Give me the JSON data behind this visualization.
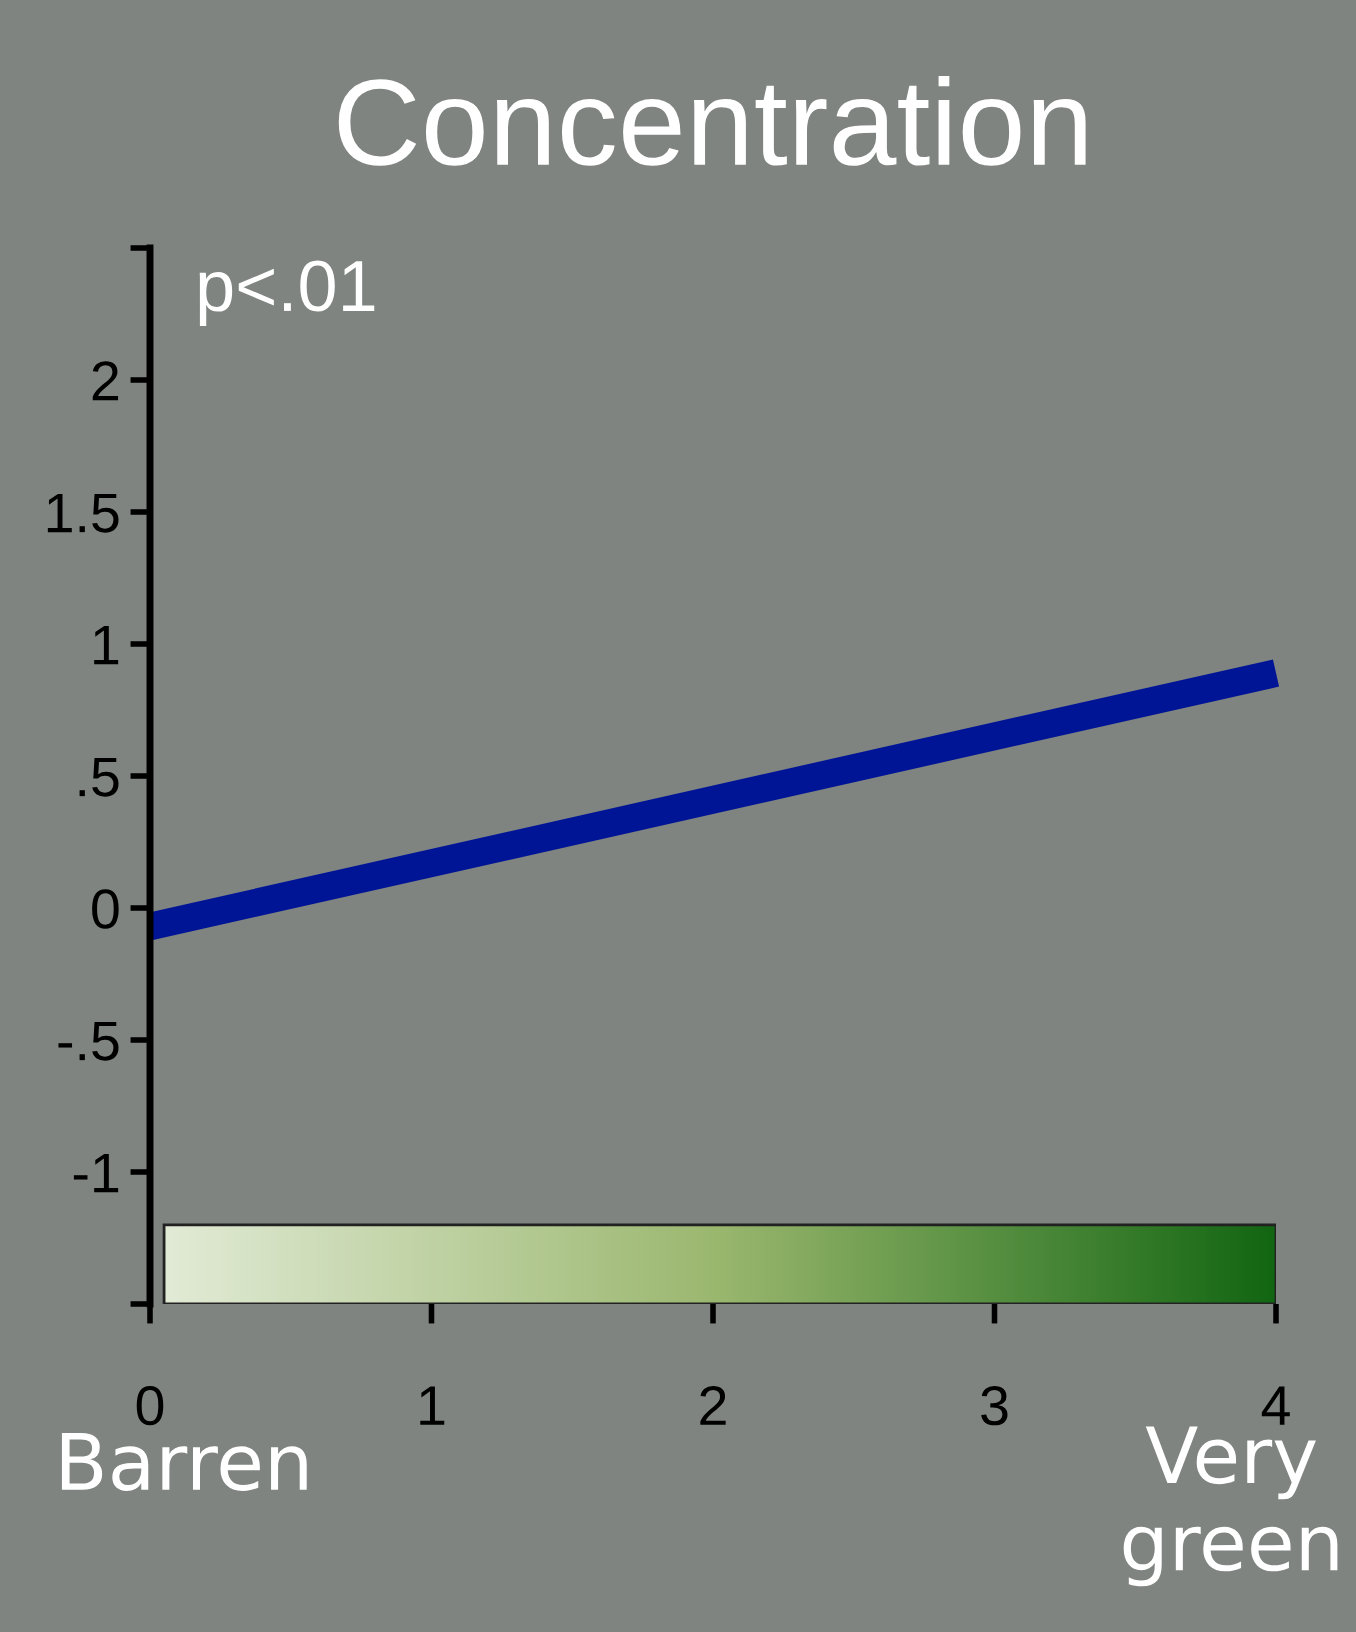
{
  "chart_data": {
    "type": "line",
    "title": "Concentration",
    "x": [
      0,
      4
    ],
    "series": [
      {
        "color": "#001496",
        "values": [
          -0.07,
          0.89
        ]
      }
    ],
    "xlim": [
      0,
      4
    ],
    "xticks": [
      0,
      1,
      2,
      3,
      4
    ],
    "ylim": [
      -1.5,
      2.5
    ],
    "yticks": [
      {
        "value": -1.5,
        "label": null
      },
      {
        "value": -1,
        "label": "-1"
      },
      {
        "value": -0.5,
        "label": "-.5"
      },
      {
        "value": 0,
        "label": "0"
      },
      {
        "value": 0.5,
        "label": ".5"
      },
      {
        "value": 1,
        "label": "1"
      },
      {
        "value": 1.5,
        "label": "1.5"
      },
      {
        "value": 2,
        "label": "2"
      },
      {
        "value": 2.5,
        "label": null
      }
    ],
    "annotations": [
      "p<.01",
      "Barren",
      "Very\ngreen"
    ],
    "grid": false,
    "legend": false,
    "marker": "none",
    "line_style": "solid"
  }
}
